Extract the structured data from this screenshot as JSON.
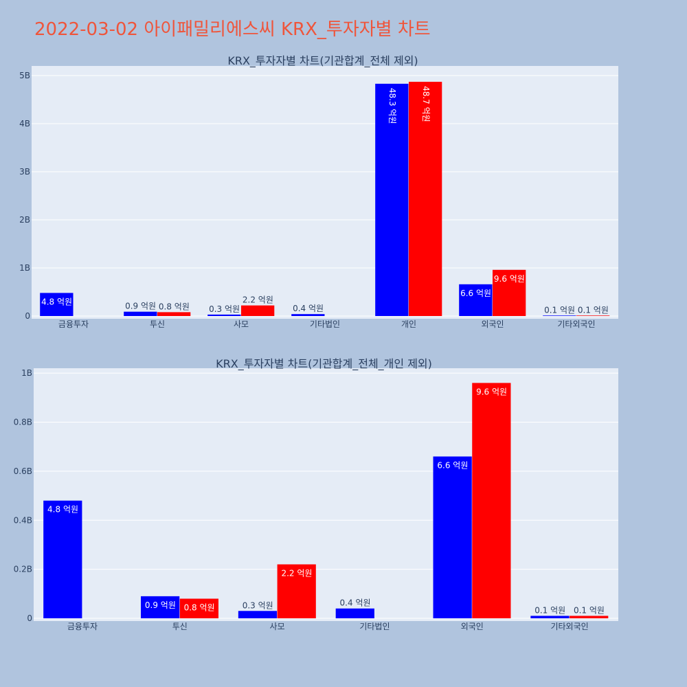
{
  "page_title": "2022-03-02 아이패밀리에스씨 KRX_투자자별 차트",
  "colors": {
    "background": "#b0c4de",
    "plot_bg": "#e5ecf6",
    "title": "#ef553b",
    "series_a": "#0000ff",
    "series_b": "#ff0000"
  },
  "chart_data": [
    {
      "type": "bar",
      "title": "KRX_투자자별 차트(기관합계_전체 제외)",
      "categories": [
        "금융투자",
        "투신",
        "사모",
        "기타법인",
        "개인",
        "외국인",
        "기타외국인"
      ],
      "ylim": [
        0,
        5200000000
      ],
      "yticks": [
        0,
        1000000000,
        2000000000,
        3000000000,
        4000000000,
        5000000000
      ],
      "ytick_labels": [
        "0",
        "1B",
        "2B",
        "3B",
        "4B",
        "5B"
      ],
      "grid": true,
      "series": [
        {
          "values": [
            480000000,
            90000000,
            30000000,
            40000000,
            4830000000,
            660000000,
            10000000
          ],
          "labels": [
            "4.8 억원",
            "0.9 억원",
            "0.3 억원",
            "0.4 억원",
            "48.3 억원",
            "6.6 억원",
            "0.1 억원"
          ]
        },
        {
          "values": [
            null,
            80000000,
            220000000,
            null,
            4870000000,
            960000000,
            10000000
          ],
          "labels": [
            "",
            "0.8 억원",
            "2.2 억원",
            "",
            "48.7 억원",
            "9.6 억원",
            "0.1 억원"
          ]
        }
      ]
    },
    {
      "type": "bar",
      "title": "KRX_투자자별 차트(기관합계_전체_개인 제외)",
      "categories": [
        "금융투자",
        "투신",
        "사모",
        "기타법인",
        "외국인",
        "기타외국인"
      ],
      "ylim": [
        0,
        1020000000
      ],
      "yticks": [
        0,
        200000000,
        400000000,
        600000000,
        800000000,
        1000000000
      ],
      "ytick_labels": [
        "0",
        "0.2B",
        "0.4B",
        "0.6B",
        "0.8B",
        "1B"
      ],
      "grid": true,
      "series": [
        {
          "values": [
            480000000,
            90000000,
            30000000,
            40000000,
            660000000,
            10000000
          ],
          "labels": [
            "4.8 억원",
            "0.9 억원",
            "0.3 억원",
            "0.4 억원",
            "6.6 억원",
            "0.1 억원"
          ]
        },
        {
          "values": [
            null,
            80000000,
            220000000,
            null,
            960000000,
            10000000
          ],
          "labels": [
            "",
            "0.8 억원",
            "2.2 억원",
            "",
            "9.6 억원",
            "0.1 억원"
          ]
        }
      ]
    }
  ]
}
